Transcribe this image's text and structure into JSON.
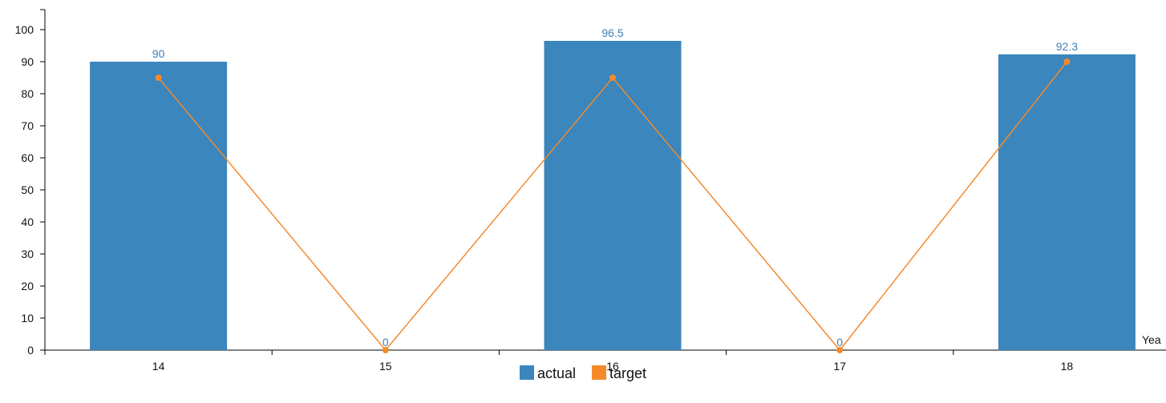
{
  "chart_data": {
    "type": "bar",
    "categories": [
      "14",
      "15",
      "16",
      "17",
      "18"
    ],
    "series": [
      {
        "name": "actual",
        "type": "bar",
        "values": [
          90,
          0,
          96.5,
          0,
          92.3
        ],
        "color": "#3a86bd"
      },
      {
        "name": "target",
        "type": "line",
        "values": [
          85,
          0,
          85,
          0,
          90
        ],
        "color": "#f58a2a"
      }
    ],
    "data_labels": [
      "90",
      "0",
      "96.5",
      "0",
      "92.3"
    ],
    "xlabel": "Yea",
    "ylabel": "",
    "ylim": [
      0,
      100
    ],
    "yticks": [
      0,
      10,
      20,
      30,
      40,
      50,
      60,
      70,
      80,
      90,
      100
    ],
    "grid": false,
    "legend_position": "bottom-center"
  }
}
